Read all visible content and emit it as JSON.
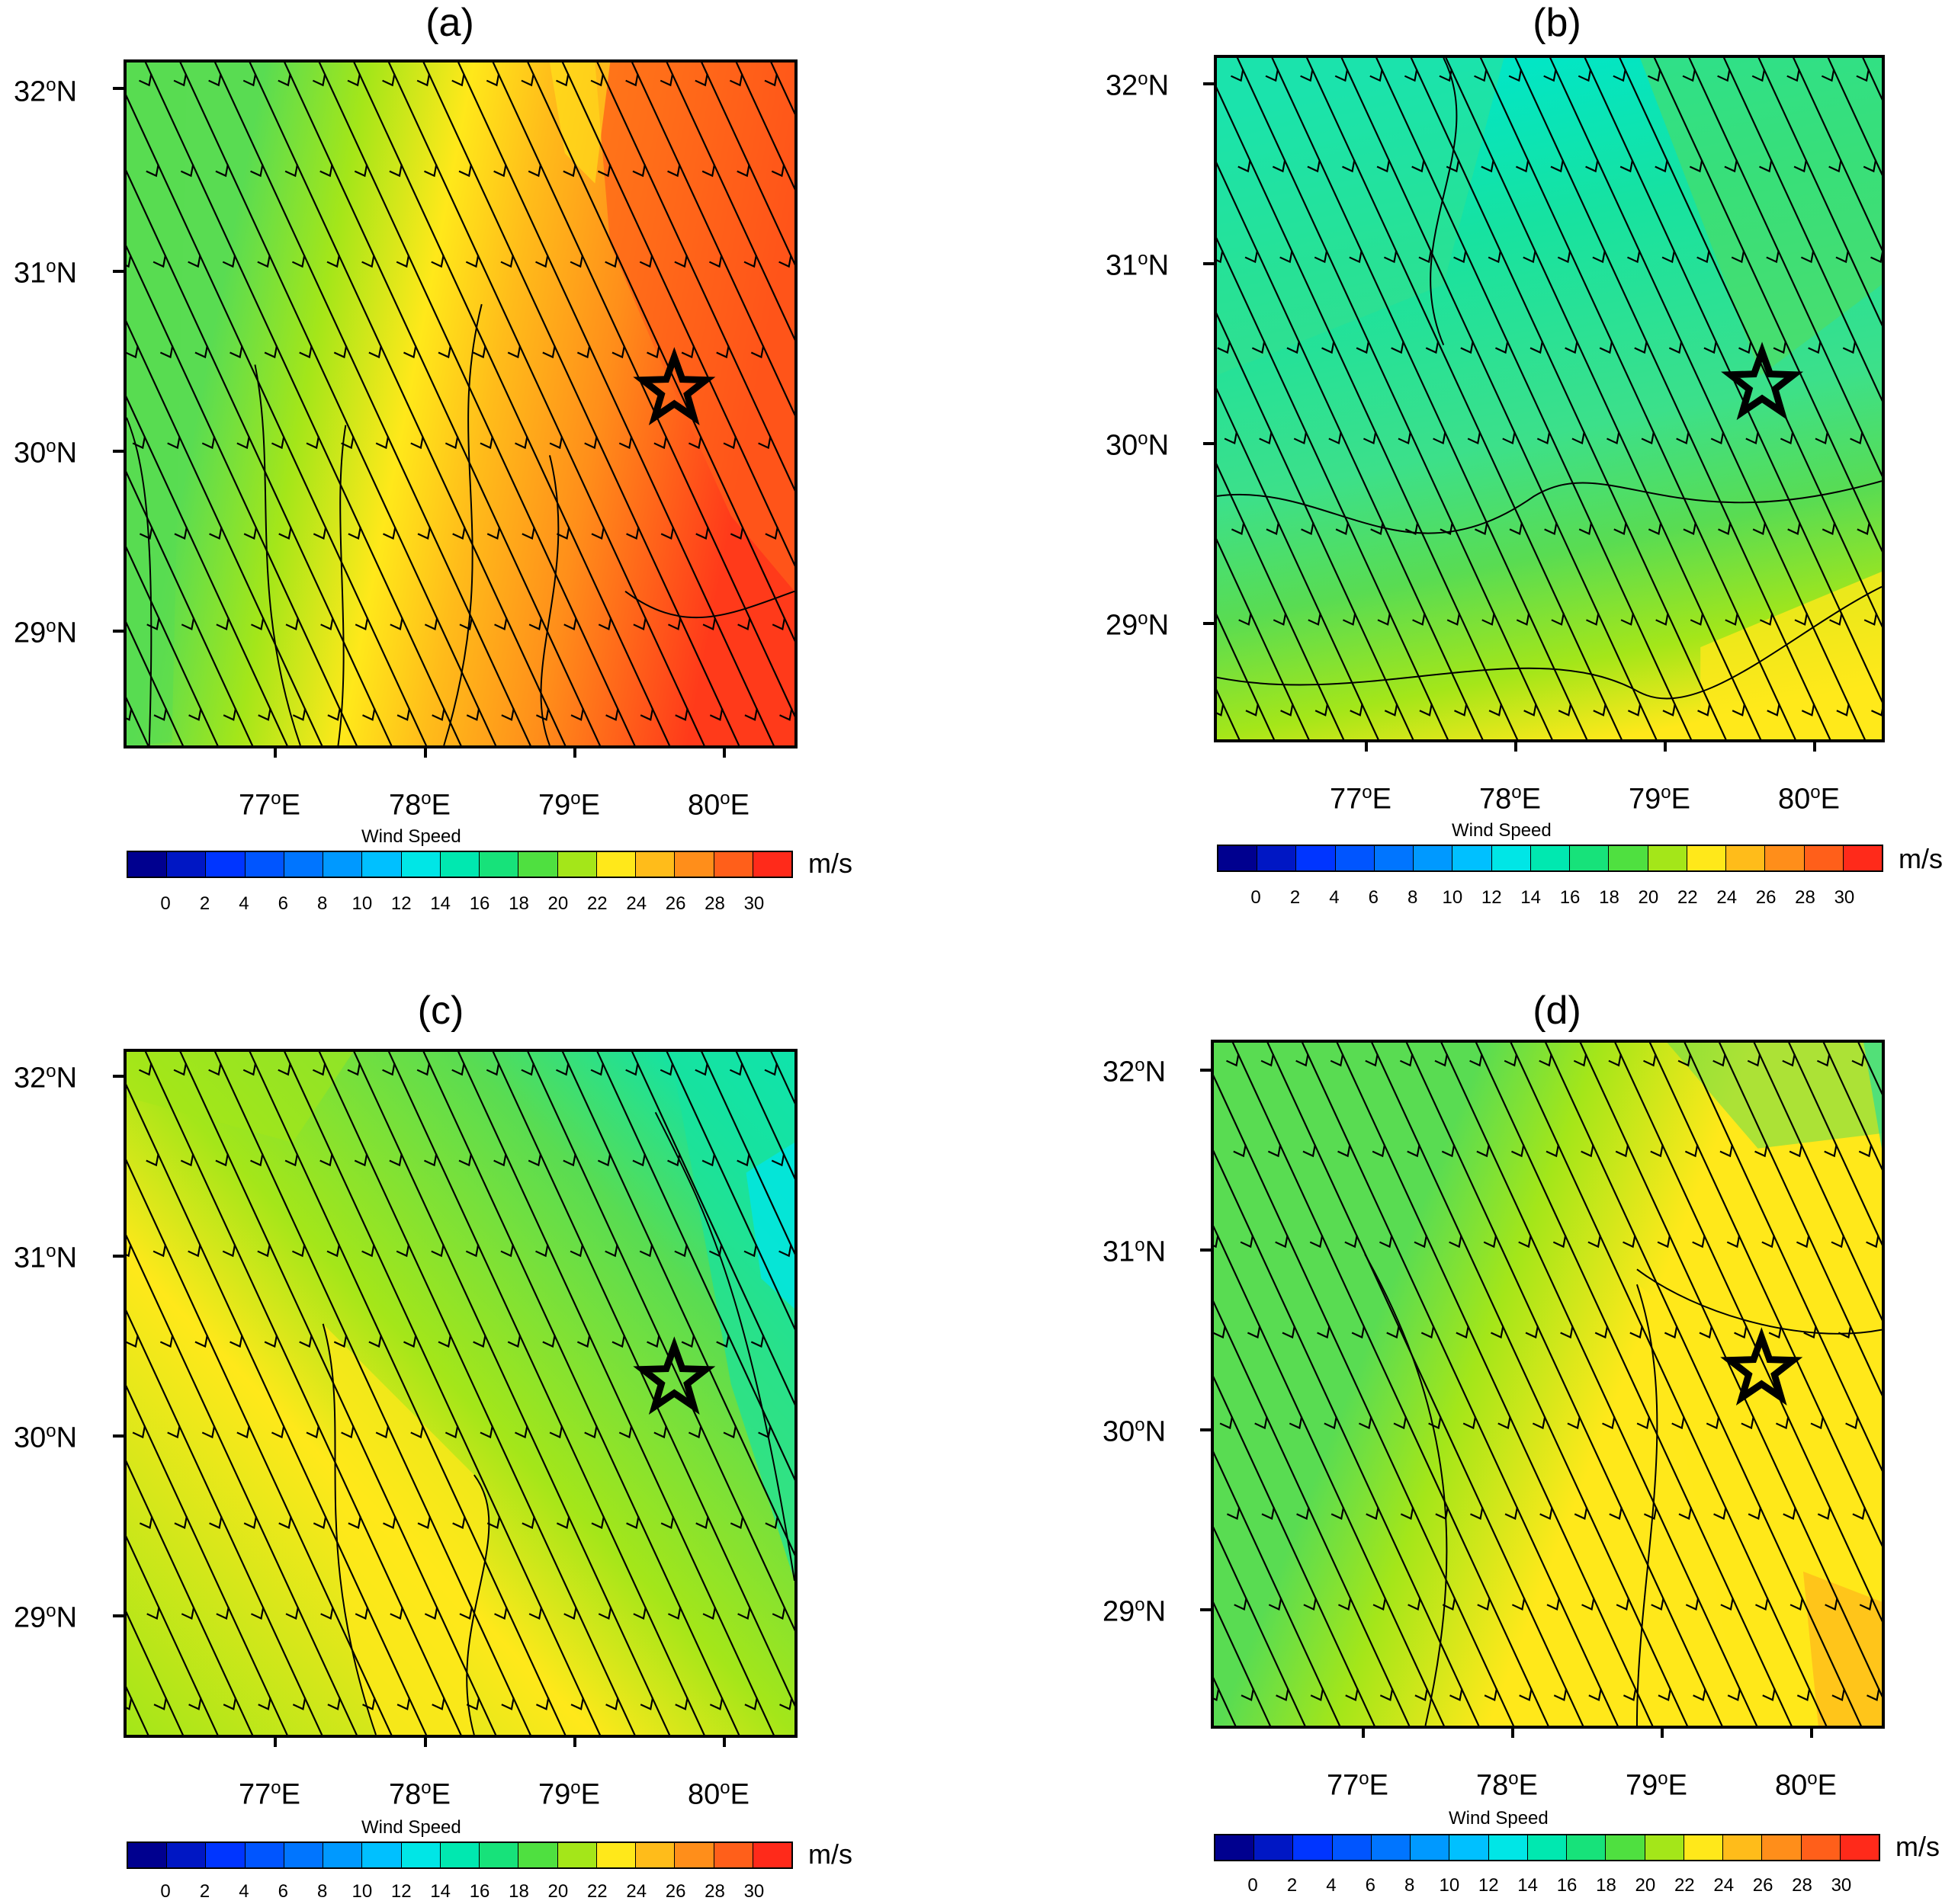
{
  "colorbar": {
    "title": "Wind Speed",
    "unit": "m/s",
    "colors": [
      "#00008f",
      "#0017c4",
      "#0035ff",
      "#0055ff",
      "#0075ff",
      "#0099ff",
      "#00c0ff",
      "#00e6e6",
      "#00e8b0",
      "#17e27a",
      "#4fe040",
      "#a4e619",
      "#ffe81a",
      "#ffbc1a",
      "#ff8e1a",
      "#ff5f1a",
      "#ff2a1a"
    ],
    "labels": [
      "0",
      "2",
      "4",
      "6",
      "8",
      "10",
      "12",
      "14",
      "16",
      "18",
      "20",
      "22",
      "24",
      "26",
      "28",
      "30"
    ]
  },
  "axes": {
    "x_labels": [
      "77",
      "78",
      "79",
      "80"
    ],
    "x_suffix": "E",
    "y_labels": [
      "32",
      "31",
      "30",
      "29"
    ],
    "y_suffix": "N",
    "degree": "o"
  },
  "marker": "star",
  "panels": [
    {
      "title": "(a)",
      "field": {
        "base": "#59dc52",
        "zones": [
          "#59dc52",
          "#a4e619",
          "#ffe81a",
          "#ffbc1a",
          "#ff8e1a",
          "#ff5f1a",
          "#ff3a1a"
        ]
      },
      "wind_direction": "northwest-to-southeast"
    },
    {
      "title": "(b)",
      "field": {
        "base": "#3ce08a",
        "zones": [
          "#00e6c8",
          "#17e2a0",
          "#3ce08a",
          "#59dc52",
          "#a4e619",
          "#ffe81a"
        ]
      },
      "wind_direction": "northwest-to-southeast"
    },
    {
      "title": "(c)",
      "field": {
        "base": "#a4e619",
        "zones": [
          "#ffe81a",
          "#a4e619",
          "#59dc52",
          "#17e2a0",
          "#00e6c8"
        ]
      },
      "wind_direction": "northwest-to-southeast"
    },
    {
      "title": "(d)",
      "field": {
        "base": "#59dc52",
        "zones": [
          "#59dc52",
          "#a4e619",
          "#ffe81a",
          "#ffbc1a"
        ]
      },
      "wind_direction": "northwest-to-southeast"
    }
  ]
}
